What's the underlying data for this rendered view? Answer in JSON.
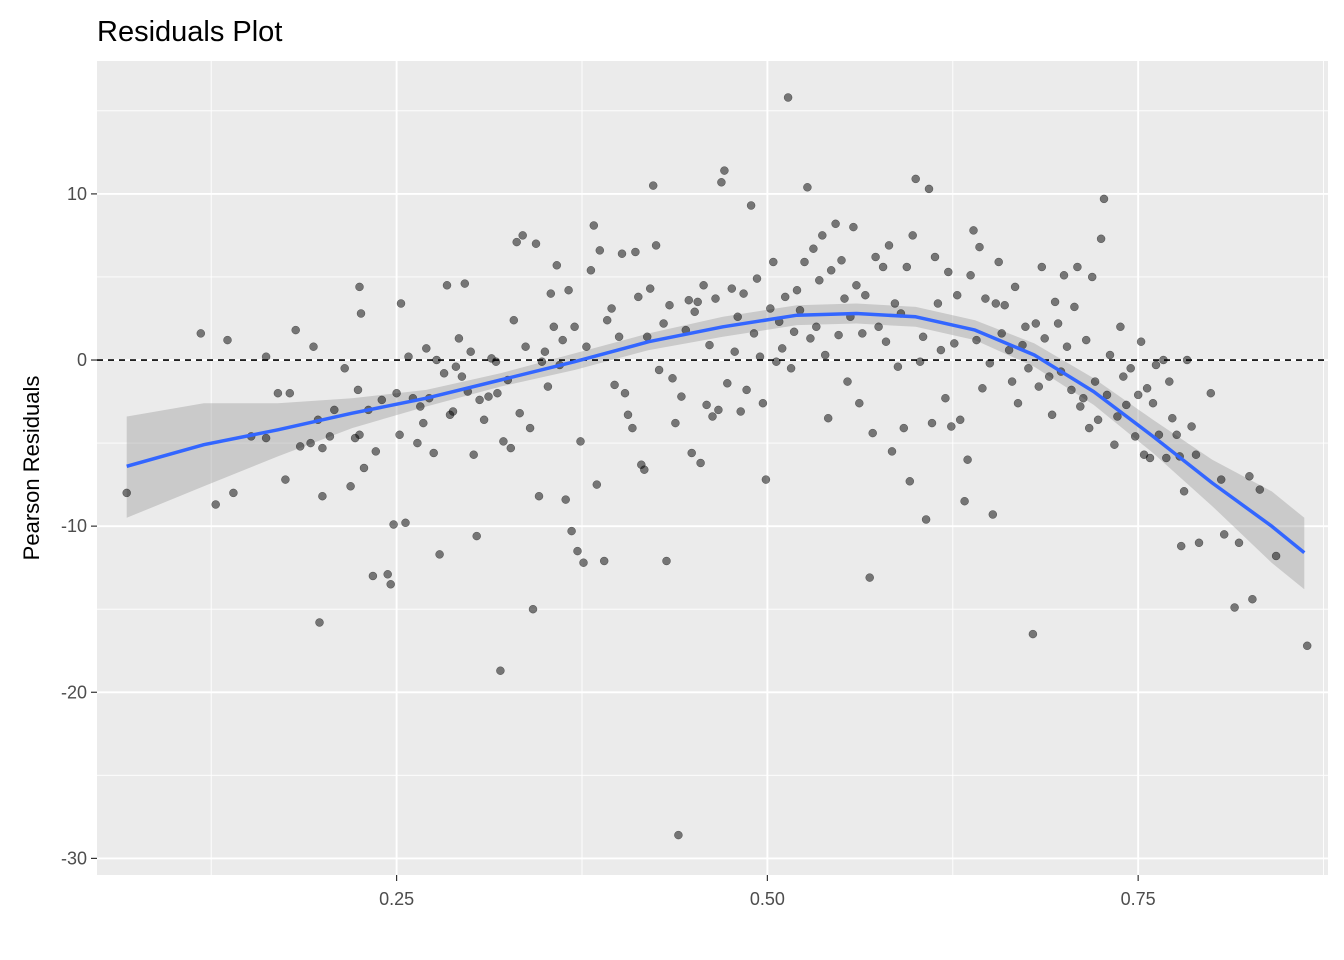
{
  "chart_data": {
    "type": "scatter",
    "title": "Residuals Plot",
    "xlabel": "",
    "ylabel": "Pearson Residuals",
    "xlim": [
      0.048,
      0.878
    ],
    "ylim": [
      -31,
      18
    ],
    "x_ticks": [
      0.25,
      0.5,
      0.75
    ],
    "x_tick_labels": [
      "0.25",
      "0.50",
      "0.75"
    ],
    "y_ticks": [
      -30,
      -20,
      -10,
      0,
      10
    ],
    "y_tick_labels": [
      "-30",
      "-20",
      "-10",
      "0",
      "10"
    ],
    "grid": true,
    "reference_line": {
      "y": 0,
      "style": "dashed"
    },
    "colors": {
      "panel": "#ebebeb",
      "grid": "#ffffff",
      "points": "#000000",
      "smooth": "#3366ff",
      "ribbon": "#999999"
    },
    "points": [
      [
        0.068,
        -8.0
      ],
      [
        0.118,
        1.6
      ],
      [
        0.128,
        -8.7
      ],
      [
        0.136,
        1.2
      ],
      [
        0.14,
        -8.0
      ],
      [
        0.152,
        -4.6
      ],
      [
        0.162,
        0.2
      ],
      [
        0.162,
        -4.7
      ],
      [
        0.17,
        -2.0
      ],
      [
        0.175,
        -7.2
      ],
      [
        0.178,
        -2.0
      ],
      [
        0.182,
        1.8
      ],
      [
        0.185,
        -5.2
      ],
      [
        0.192,
        -5.0
      ],
      [
        0.194,
        0.8
      ],
      [
        0.197,
        -3.6
      ],
      [
        0.198,
        -15.8
      ],
      [
        0.2,
        -8.2
      ],
      [
        0.2,
        -5.3
      ],
      [
        0.205,
        -4.6
      ],
      [
        0.208,
        -3.0
      ],
      [
        0.215,
        -0.5
      ],
      [
        0.219,
        -7.6
      ],
      [
        0.222,
        -4.7
      ],
      [
        0.224,
        -1.8
      ],
      [
        0.225,
        4.4
      ],
      [
        0.225,
        -4.5
      ],
      [
        0.226,
        2.8
      ],
      [
        0.228,
        -6.5
      ],
      [
        0.231,
        -3.0
      ],
      [
        0.234,
        -13.0
      ],
      [
        0.236,
        -5.5
      ],
      [
        0.24,
        -2.4
      ],
      [
        0.244,
        -12.9
      ],
      [
        0.246,
        -13.5
      ],
      [
        0.248,
        -9.9
      ],
      [
        0.25,
        -2.0
      ],
      [
        0.252,
        -4.5
      ],
      [
        0.253,
        3.4
      ],
      [
        0.256,
        -9.8
      ],
      [
        0.258,
        0.2
      ],
      [
        0.261,
        -2.3
      ],
      [
        0.264,
        -5.0
      ],
      [
        0.266,
        -2.8
      ],
      [
        0.268,
        -3.8
      ],
      [
        0.27,
        0.7
      ],
      [
        0.272,
        -2.3
      ],
      [
        0.275,
        -5.6
      ],
      [
        0.277,
        0.0
      ],
      [
        0.279,
        -11.7
      ],
      [
        0.282,
        -0.8
      ],
      [
        0.284,
        4.5
      ],
      [
        0.286,
        -3.3
      ],
      [
        0.288,
        -3.1
      ],
      [
        0.29,
        -0.4
      ],
      [
        0.292,
        1.3
      ],
      [
        0.294,
        -1.0
      ],
      [
        0.296,
        4.6
      ],
      [
        0.298,
        -1.9
      ],
      [
        0.3,
        0.5
      ],
      [
        0.302,
        -5.7
      ],
      [
        0.304,
        -10.6
      ],
      [
        0.306,
        -2.4
      ],
      [
        0.309,
        -3.6
      ],
      [
        0.312,
        -2.2
      ],
      [
        0.314,
        0.1
      ],
      [
        0.317,
        -0.1
      ],
      [
        0.318,
        -2.0
      ],
      [
        0.32,
        -18.7
      ],
      [
        0.322,
        -4.9
      ],
      [
        0.325,
        -1.2
      ],
      [
        0.327,
        -5.3
      ],
      [
        0.329,
        2.4
      ],
      [
        0.331,
        7.1
      ],
      [
        0.333,
        -3.2
      ],
      [
        0.335,
        7.5
      ],
      [
        0.337,
        0.8
      ],
      [
        0.34,
        -4.1
      ],
      [
        0.342,
        -15.0
      ],
      [
        0.344,
        7.0
      ],
      [
        0.346,
        -8.2
      ],
      [
        0.348,
        -0.1
      ],
      [
        0.35,
        0.5
      ],
      [
        0.352,
        -1.6
      ],
      [
        0.354,
        4.0
      ],
      [
        0.356,
        2.0
      ],
      [
        0.358,
        5.7
      ],
      [
        0.36,
        -0.3
      ],
      [
        0.362,
        1.2
      ],
      [
        0.364,
        -8.4
      ],
      [
        0.366,
        4.2
      ],
      [
        0.368,
        -10.3
      ],
      [
        0.37,
        2.0
      ],
      [
        0.372,
        -11.5
      ],
      [
        0.374,
        -4.9
      ],
      [
        0.376,
        -12.2
      ],
      [
        0.378,
        0.8
      ],
      [
        0.381,
        5.4
      ],
      [
        0.383,
        8.1
      ],
      [
        0.385,
        -7.5
      ],
      [
        0.387,
        6.6
      ],
      [
        0.39,
        -12.1
      ],
      [
        0.392,
        2.4
      ],
      [
        0.395,
        3.1
      ],
      [
        0.397,
        -1.5
      ],
      [
        0.4,
        1.4
      ],
      [
        0.402,
        6.4
      ],
      [
        0.404,
        -2.0
      ],
      [
        0.406,
        -3.3
      ],
      [
        0.409,
        -4.1
      ],
      [
        0.411,
        6.5
      ],
      [
        0.413,
        3.8
      ],
      [
        0.415,
        -6.3
      ],
      [
        0.417,
        -6.6
      ],
      [
        0.419,
        1.4
      ],
      [
        0.421,
        4.3
      ],
      [
        0.423,
        10.5
      ],
      [
        0.425,
        6.9
      ],
      [
        0.427,
        -0.6
      ],
      [
        0.43,
        2.2
      ],
      [
        0.432,
        -12.1
      ],
      [
        0.434,
        3.3
      ],
      [
        0.436,
        -1.1
      ],
      [
        0.438,
        -3.8
      ],
      [
        0.44,
        -28.6
      ],
      [
        0.442,
        -2.2
      ],
      [
        0.445,
        1.8
      ],
      [
        0.447,
        3.6
      ],
      [
        0.449,
        -5.6
      ],
      [
        0.451,
        2.9
      ],
      [
        0.453,
        3.5
      ],
      [
        0.455,
        -6.2
      ],
      [
        0.457,
        4.5
      ],
      [
        0.459,
        -2.7
      ],
      [
        0.461,
        0.9
      ],
      [
        0.463,
        -3.4
      ],
      [
        0.465,
        3.7
      ],
      [
        0.467,
        -3.0
      ],
      [
        0.469,
        10.7
      ],
      [
        0.471,
        11.4
      ],
      [
        0.473,
        -1.4
      ],
      [
        0.476,
        4.3
      ],
      [
        0.478,
        0.5
      ],
      [
        0.48,
        2.6
      ],
      [
        0.482,
        -3.1
      ],
      [
        0.484,
        4.0
      ],
      [
        0.486,
        -1.8
      ],
      [
        0.489,
        9.3
      ],
      [
        0.491,
        1.6
      ],
      [
        0.493,
        4.9
      ],
      [
        0.495,
        0.2
      ],
      [
        0.497,
        -2.6
      ],
      [
        0.499,
        -7.2
      ],
      [
        0.502,
        3.1
      ],
      [
        0.504,
        5.9
      ],
      [
        0.506,
        -0.1
      ],
      [
        0.508,
        2.3
      ],
      [
        0.51,
        0.7
      ],
      [
        0.512,
        3.8
      ],
      [
        0.514,
        15.8
      ],
      [
        0.516,
        -0.5
      ],
      [
        0.518,
        1.7
      ],
      [
        0.52,
        4.2
      ],
      [
        0.522,
        3.0
      ],
      [
        0.525,
        5.9
      ],
      [
        0.527,
        10.4
      ],
      [
        0.529,
        1.3
      ],
      [
        0.531,
        6.7
      ],
      [
        0.533,
        2.0
      ],
      [
        0.535,
        4.8
      ],
      [
        0.537,
        7.5
      ],
      [
        0.539,
        0.3
      ],
      [
        0.541,
        -3.5
      ],
      [
        0.543,
        5.4
      ],
      [
        0.546,
        8.2
      ],
      [
        0.548,
        1.5
      ],
      [
        0.55,
        6.0
      ],
      [
        0.552,
        3.7
      ],
      [
        0.554,
        -1.3
      ],
      [
        0.556,
        2.6
      ],
      [
        0.558,
        8.0
      ],
      [
        0.56,
        4.5
      ],
      [
        0.562,
        -2.6
      ],
      [
        0.564,
        1.6
      ],
      [
        0.566,
        3.9
      ],
      [
        0.569,
        -13.1
      ],
      [
        0.571,
        -4.4
      ],
      [
        0.573,
        6.2
      ],
      [
        0.575,
        2.0
      ],
      [
        0.578,
        5.6
      ],
      [
        0.58,
        1.1
      ],
      [
        0.582,
        6.9
      ],
      [
        0.584,
        -5.5
      ],
      [
        0.586,
        3.4
      ],
      [
        0.588,
        -0.4
      ],
      [
        0.59,
        2.8
      ],
      [
        0.592,
        -4.1
      ],
      [
        0.594,
        5.6
      ],
      [
        0.596,
        -7.3
      ],
      [
        0.598,
        7.5
      ],
      [
        0.6,
        10.9
      ],
      [
        0.603,
        -0.1
      ],
      [
        0.605,
        1.4
      ],
      [
        0.607,
        -9.6
      ],
      [
        0.609,
        10.3
      ],
      [
        0.611,
        -3.8
      ],
      [
        0.613,
        6.2
      ],
      [
        0.615,
        3.4
      ],
      [
        0.617,
        0.6
      ],
      [
        0.62,
        -2.3
      ],
      [
        0.622,
        5.3
      ],
      [
        0.624,
        -4.0
      ],
      [
        0.626,
        1.0
      ],
      [
        0.628,
        3.9
      ],
      [
        0.63,
        -3.6
      ],
      [
        0.633,
        -8.5
      ],
      [
        0.635,
        -6.0
      ],
      [
        0.637,
        5.1
      ],
      [
        0.639,
        7.8
      ],
      [
        0.641,
        1.2
      ],
      [
        0.643,
        6.8
      ],
      [
        0.645,
        -1.7
      ],
      [
        0.647,
        3.7
      ],
      [
        0.65,
        -0.2
      ],
      [
        0.652,
        -9.3
      ],
      [
        0.654,
        3.4
      ],
      [
        0.656,
        5.9
      ],
      [
        0.658,
        1.6
      ],
      [
        0.66,
        3.3
      ],
      [
        0.663,
        0.6
      ],
      [
        0.665,
        -1.3
      ],
      [
        0.667,
        4.4
      ],
      [
        0.669,
        -2.6
      ],
      [
        0.672,
        0.9
      ],
      [
        0.674,
        2.0
      ],
      [
        0.676,
        -0.5
      ],
      [
        0.679,
        -16.5
      ],
      [
        0.681,
        2.2
      ],
      [
        0.683,
        -1.6
      ],
      [
        0.685,
        5.6
      ],
      [
        0.687,
        1.3
      ],
      [
        0.69,
        -1.0
      ],
      [
        0.692,
        -3.3
      ],
      [
        0.694,
        3.5
      ],
      [
        0.696,
        2.2
      ],
      [
        0.698,
        -0.7
      ],
      [
        0.7,
        5.1
      ],
      [
        0.702,
        0.8
      ],
      [
        0.705,
        -1.8
      ],
      [
        0.707,
        3.2
      ],
      [
        0.709,
        5.6
      ],
      [
        0.711,
        -2.8
      ],
      [
        0.713,
        -2.3
      ],
      [
        0.715,
        1.2
      ],
      [
        0.717,
        -4.1
      ],
      [
        0.719,
        5.0
      ],
      [
        0.721,
        -1.3
      ],
      [
        0.723,
        -3.6
      ],
      [
        0.725,
        7.3
      ],
      [
        0.727,
        9.7
      ],
      [
        0.729,
        -2.1
      ],
      [
        0.731,
        0.3
      ],
      [
        0.734,
        -5.1
      ],
      [
        0.736,
        -3.4
      ],
      [
        0.738,
        2.0
      ],
      [
        0.74,
        -1.0
      ],
      [
        0.742,
        -2.7
      ],
      [
        0.745,
        -0.5
      ],
      [
        0.748,
        -4.6
      ],
      [
        0.75,
        -2.1
      ],
      [
        0.752,
        1.1
      ],
      [
        0.754,
        -5.7
      ],
      [
        0.756,
        -1.7
      ],
      [
        0.758,
        -5.9
      ],
      [
        0.76,
        -2.6
      ],
      [
        0.762,
        -0.3
      ],
      [
        0.764,
        -4.5
      ],
      [
        0.767,
        0.0
      ],
      [
        0.769,
        -5.9
      ],
      [
        0.771,
        -1.3
      ],
      [
        0.773,
        -3.5
      ],
      [
        0.776,
        -4.5
      ],
      [
        0.778,
        -5.8
      ],
      [
        0.779,
        -11.2
      ],
      [
        0.781,
        -7.9
      ],
      [
        0.783,
        0.0
      ],
      [
        0.786,
        -4.0
      ],
      [
        0.789,
        -5.7
      ],
      [
        0.791,
        -11.0
      ],
      [
        0.799,
        -2.0
      ],
      [
        0.806,
        -7.2
      ],
      [
        0.808,
        -10.5
      ],
      [
        0.815,
        -14.9
      ],
      [
        0.818,
        -11.0
      ],
      [
        0.825,
        -7.0
      ],
      [
        0.827,
        -14.4
      ],
      [
        0.832,
        -7.8
      ],
      [
        0.843,
        -11.8
      ],
      [
        0.864,
        -17.2
      ]
    ],
    "smooth": {
      "method": "loess",
      "x": [
        0.068,
        0.12,
        0.17,
        0.22,
        0.27,
        0.32,
        0.37,
        0.42,
        0.47,
        0.52,
        0.56,
        0.6,
        0.64,
        0.68,
        0.72,
        0.76,
        0.8,
        0.84,
        0.862
      ],
      "y": [
        -6.4,
        -5.1,
        -4.2,
        -3.2,
        -2.3,
        -1.2,
        -0.1,
        1.1,
        2.0,
        2.7,
        2.8,
        2.6,
        1.8,
        0.3,
        -1.9,
        -4.6,
        -7.4,
        -10.0,
        -11.6
      ],
      "lower": [
        -9.5,
        -7.6,
        -5.8,
        -4.1,
        -2.8,
        -1.6,
        -0.6,
        0.6,
        1.4,
        2.1,
        2.2,
        2.0,
        1.2,
        -0.4,
        -2.7,
        -5.6,
        -8.8,
        -12.2,
        -13.8
      ],
      "upper": [
        -3.4,
        -2.6,
        -2.6,
        -2.3,
        -1.8,
        -0.8,
        0.4,
        1.6,
        2.6,
        3.3,
        3.4,
        3.2,
        2.4,
        1.0,
        -1.1,
        -3.6,
        -6.0,
        -7.9,
        -9.5
      ]
    }
  }
}
